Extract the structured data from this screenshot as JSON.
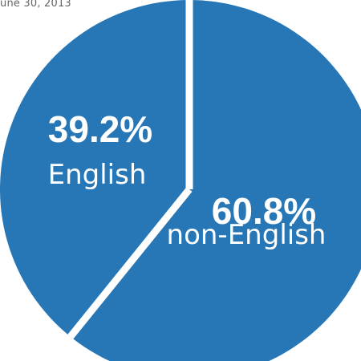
{
  "date_text": "une 30, 2013",
  "chart_data": {
    "type": "pie",
    "slices": [
      {
        "label": "non-English",
        "value": 60.8,
        "value_text": "60.8%",
        "color": "#2777b7"
      },
      {
        "label": "English",
        "value": 39.2,
        "value_text": "39.2%",
        "color": "#2777b7"
      }
    ],
    "separator_color": "#ffffff",
    "background": "#ffffff"
  }
}
